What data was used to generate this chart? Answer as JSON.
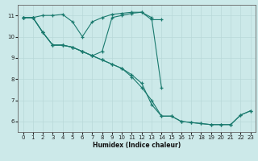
{
  "xlabel": "Humidex (Indice chaleur)",
  "xlim": [
    -0.5,
    23.5
  ],
  "ylim": [
    5.5,
    11.5
  ],
  "xticks": [
    0,
    1,
    2,
    3,
    4,
    5,
    6,
    7,
    8,
    9,
    10,
    11,
    12,
    13,
    14,
    15,
    16,
    17,
    18,
    19,
    20,
    21,
    22,
    23
  ],
  "yticks": [
    6,
    7,
    8,
    9,
    10,
    11
  ],
  "bg_color": "#cce9e9",
  "line_color": "#1a7a6e",
  "grid_color": "#b8d8d8",
  "lines": [
    {
      "x": [
        0,
        1,
        2,
        3,
        4,
        5,
        6,
        7,
        8,
        9,
        10,
        11,
        12,
        13,
        14
      ],
      "y": [
        10.9,
        10.9,
        11.0,
        11.0,
        11.05,
        10.7,
        10.0,
        10.7,
        10.9,
        11.05,
        11.1,
        11.15,
        11.15,
        10.8,
        10.8
      ]
    },
    {
      "x": [
        0,
        1,
        2,
        3,
        4,
        5,
        6,
        7,
        8,
        9,
        10,
        11,
        12,
        13,
        14
      ],
      "y": [
        10.9,
        10.9,
        10.2,
        9.6,
        9.6,
        9.5,
        9.3,
        9.1,
        9.3,
        10.9,
        11.0,
        11.1,
        11.15,
        10.9,
        7.6
      ]
    },
    {
      "x": [
        0,
        1,
        2,
        3,
        4,
        5,
        6,
        7,
        8,
        9,
        10,
        11,
        12,
        13,
        14,
        15,
        16,
        17,
        18,
        19,
        20,
        21,
        22,
        23
      ],
      "y": [
        10.9,
        10.9,
        10.2,
        9.6,
        9.6,
        9.5,
        9.3,
        9.1,
        8.9,
        8.7,
        8.5,
        8.2,
        7.8,
        6.8,
        6.25,
        6.25,
        6.0,
        5.95,
        5.9,
        5.85,
        5.85,
        5.85,
        6.3,
        6.5
      ]
    },
    {
      "x": [
        0,
        1,
        2,
        3,
        4,
        5,
        6,
        7,
        8,
        9,
        10,
        11,
        12,
        13,
        14,
        15,
        16,
        17,
        18,
        19,
        20,
        21,
        22,
        23
      ],
      "y": [
        10.9,
        10.9,
        10.2,
        9.6,
        9.6,
        9.5,
        9.3,
        9.1,
        8.9,
        8.7,
        8.5,
        8.1,
        7.6,
        7.0,
        6.25,
        6.25,
        6.0,
        5.95,
        5.9,
        5.85,
        5.85,
        5.85,
        6.3,
        6.5
      ]
    }
  ]
}
